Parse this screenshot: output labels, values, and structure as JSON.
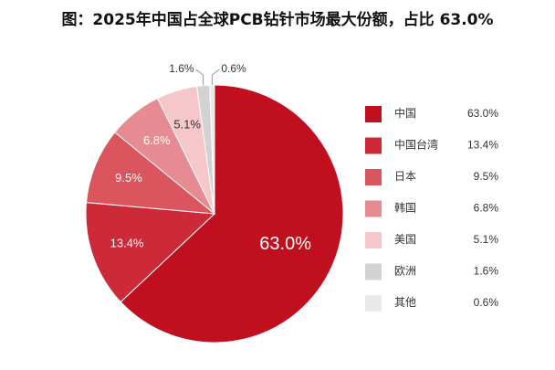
{
  "chart_data": {
    "type": "pie",
    "title": "图：2025年中国占全球PCB钻针市场最大份额，占比 63.0%",
    "categories": [
      "中国",
      "中国台湾",
      "日本",
      "韩国",
      "美国",
      "欧洲",
      "其他"
    ],
    "values": [
      63.0,
      13.4,
      9.5,
      6.8,
      5.1,
      1.6,
      0.6
    ],
    "value_labels": [
      "63.0%",
      "13.4%",
      "9.5%",
      "6.8%",
      "5.1%",
      "1.6%",
      "0.6%"
    ],
    "colors": [
      "#c00f1e",
      "#cc2a38",
      "#da555e",
      "#e68b91",
      "#f5c7ca",
      "#d2d2d2",
      "#e9e9e9"
    ],
    "legend": "right"
  }
}
